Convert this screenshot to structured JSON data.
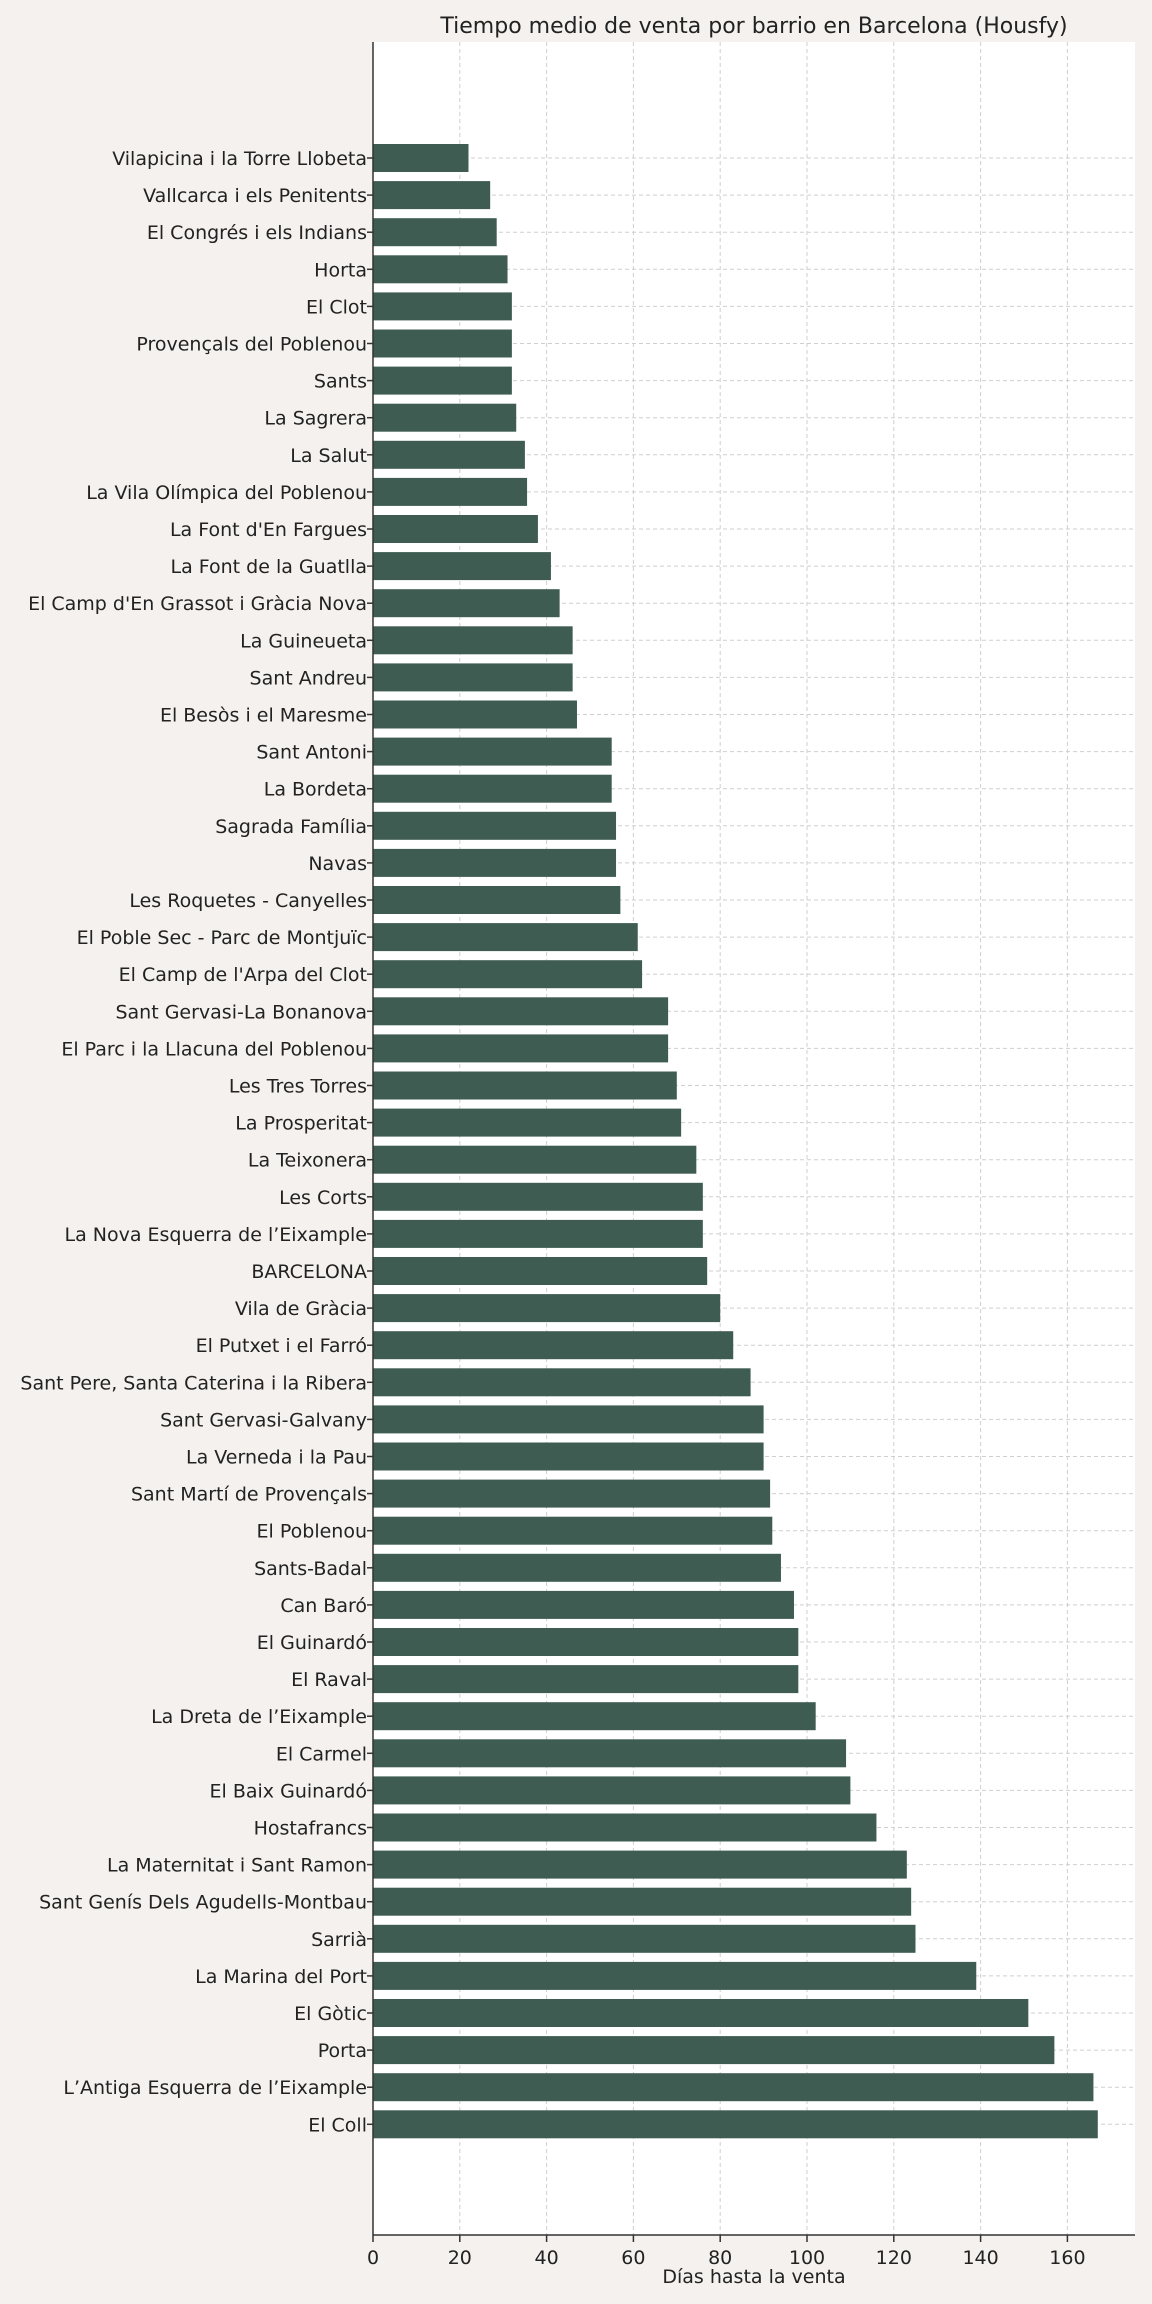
{
  "chart_data": {
    "type": "bar",
    "orientation": "horizontal",
    "title": "Tiempo medio de venta por barrio en Barcelona (Housfy)",
    "xlabel": "Días hasta la venta",
    "ylabel": "",
    "xlim": [
      0,
      175
    ],
    "xticks": [
      0,
      20,
      40,
      60,
      80,
      100,
      120,
      140,
      160
    ],
    "grid": true,
    "bar_color": "#3f5c52",
    "categories": [
      "Vilapicina i la Torre Llobeta",
      "Vallcarca i els Penitents",
      "El Congrés i els Indians",
      "Horta",
      "El Clot",
      "Provençals del Poblenou",
      "Sants",
      "La Sagrera",
      "La Salut",
      "La Vila Olímpica del Poblenou",
      "La Font d'En Fargues",
      "La Font de la Guatlla",
      "El Camp d'En Grassot i Gràcia Nova",
      "La Guineueta",
      "Sant Andreu",
      "El Besòs i el Maresme",
      "Sant Antoni",
      "La Bordeta",
      "Sagrada Família",
      "Navas",
      "Les Roquetes - Canyelles",
      "El Poble Sec - Parc de Montjuïc",
      "El Camp de l'Arpa del Clot",
      "Sant Gervasi-La Bonanova",
      "El Parc i la Llacuna del Poblenou",
      "Les Tres Torres",
      "La Prosperitat",
      "La Teixonera",
      "Les Corts",
      "La Nova Esquerra de l’Eixample",
      "BARCELONA",
      "Vila de Gràcia",
      "El Putxet i el Farró",
      "Sant Pere, Santa Caterina i la Ribera",
      "Sant Gervasi-Galvany",
      "La Verneda i la Pau",
      "Sant Martí de Provençals",
      "El Poblenou",
      "Sants-Badal",
      "Can Baró",
      "El Guinardó",
      "El Raval",
      "La Dreta de l’Eixample",
      "El Carmel",
      "El Baix Guinardó",
      "Hostafrancs",
      "La Maternitat i Sant Ramon",
      "Sant Genís Dels Agudells-Montbau",
      "Sarrià",
      "La Marina del Port",
      "El Gòtic",
      "Porta",
      "L’Antiga Esquerra de l’Eixample",
      "El Coll"
    ],
    "values": [
      22,
      27,
      28.5,
      31,
      32,
      32,
      32,
      33,
      35,
      35.5,
      38,
      41,
      43,
      46,
      46,
      47,
      55,
      55,
      56,
      56,
      57,
      61,
      62,
      68,
      68,
      70,
      71,
      74.5,
      76,
      76,
      77,
      80,
      83,
      87,
      90,
      90,
      91.5,
      92,
      94,
      97,
      98,
      98,
      102,
      109,
      110,
      116,
      123,
      124,
      125,
      139,
      151,
      157,
      166,
      167
    ]
  }
}
